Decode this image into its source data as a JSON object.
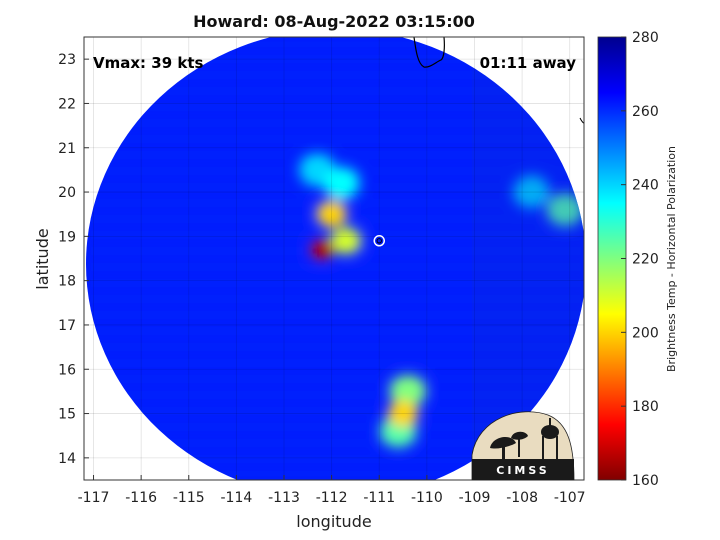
{
  "title": "Howard: 08-Aug-2022 03:15:00",
  "overlay": {
    "vmax_text": "Vmax: 39 kts",
    "time_away_text": "01:11 away"
  },
  "axes": {
    "xlabel": "longitude",
    "ylabel": "latitude",
    "xlim": [
      -117.2,
      -106.7
    ],
    "ylim": [
      13.5,
      23.5
    ],
    "xticks": [
      -117,
      -116,
      -115,
      -114,
      -113,
      -112,
      -111,
      -110,
      -109,
      -108,
      -107
    ],
    "xtick_labels": [
      "-117",
      "-116",
      "-115",
      "-114",
      "-113",
      "-112",
      "-111",
      "-110",
      "-109",
      "-108",
      "-107"
    ],
    "yticks": [
      14,
      15,
      16,
      17,
      18,
      19,
      20,
      21,
      22,
      23
    ],
    "ytick_labels": [
      "14",
      "15",
      "16",
      "17",
      "18",
      "19",
      "20",
      "21",
      "22",
      "23"
    ],
    "grid": true
  },
  "colorbar": {
    "label": "Brightness Temp - Horizontal Polarization",
    "range": [
      160,
      280
    ],
    "ticks": [
      160,
      180,
      200,
      220,
      240,
      260,
      280
    ],
    "tick_labels": [
      "160",
      "180",
      "200",
      "220",
      "240",
      "260",
      "280"
    ],
    "colormap": "jet"
  },
  "logo": {
    "text": "CIMSS"
  },
  "chart_data": {
    "type": "heatmap",
    "title": "Howard: 08-Aug-2022 03:15:00",
    "xlabel": "longitude",
    "ylabel": "latitude",
    "colorbar_label": "Brightness Temp - Horizontal Polarization",
    "value_range": [
      160,
      280
    ],
    "background_value": 262,
    "storm_center": {
      "lon": -111.0,
      "lat": 18.9
    },
    "swath_center": {
      "lon": -111.8,
      "lat": 18.3
    },
    "features": [
      {
        "lon": -112.2,
        "lat": 18.7,
        "value": 165
      },
      {
        "lon": -112.0,
        "lat": 19.5,
        "value": 200
      },
      {
        "lon": -111.8,
        "lat": 20.2,
        "value": 235
      },
      {
        "lon": -112.3,
        "lat": 20.5,
        "value": 240
      },
      {
        "lon": -111.7,
        "lat": 18.9,
        "value": 210
      },
      {
        "lon": -110.5,
        "lat": 15.0,
        "value": 200
      },
      {
        "lon": -110.4,
        "lat": 15.5,
        "value": 220
      },
      {
        "lon": -110.6,
        "lat": 14.6,
        "value": 225
      },
      {
        "lon": -107.8,
        "lat": 20.0,
        "value": 240
      },
      {
        "lon": -107.1,
        "lat": 19.6,
        "value": 225
      }
    ]
  }
}
